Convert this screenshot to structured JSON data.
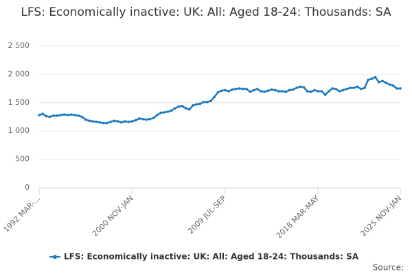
{
  "chart_data": {
    "type": "line",
    "title": "LFS: Economically inactive: UK: All: Aged 18-24: Thousands: SA",
    "source": "Source:",
    "categories": [
      "1992 MAR-...",
      null,
      null,
      null,
      null,
      null,
      null,
      null,
      null,
      null,
      null,
      null,
      null,
      null,
      null,
      null,
      null,
      null,
      null,
      null,
      null,
      null,
      null,
      null,
      null,
      null,
      "2000 NOV-JAN",
      null,
      null,
      null,
      null,
      null,
      null,
      null,
      null,
      null,
      null,
      null,
      null,
      null,
      null,
      null,
      null,
      null,
      null,
      null,
      null,
      null,
      null,
      null,
      null,
      null,
      "2009 JUL-SEP",
      null,
      null,
      null,
      null,
      null,
      null,
      null,
      null,
      null,
      null,
      null,
      null,
      null,
      null,
      null,
      null,
      null,
      null,
      null,
      null,
      null,
      null,
      null,
      null,
      null,
      "2018 MAR-MAY",
      null,
      null,
      null,
      null,
      null,
      null,
      null,
      null,
      null,
      null,
      null,
      null,
      null,
      null,
      null,
      null,
      null,
      null,
      null,
      null,
      null,
      null,
      "2025 NOV-JAN"
    ],
    "series": [
      {
        "name": "LFS: Economically inactive: UK: All: Aged 18-24: Thousands: SA",
        "color": "#1a7abf",
        "values": [
          1280,
          1300,
          1260,
          1250,
          1270,
          1270,
          1280,
          1290,
          1280,
          1290,
          1280,
          1270,
          1250,
          1200,
          1180,
          1170,
          1160,
          1150,
          1140,
          1140,
          1160,
          1180,
          1170,
          1150,
          1170,
          1160,
          1170,
          1190,
          1220,
          1210,
          1200,
          1210,
          1230,
          1280,
          1320,
          1330,
          1340,
          1360,
          1400,
          1430,
          1440,
          1400,
          1380,
          1450,
          1470,
          1480,
          1510,
          1510,
          1530,
          1600,
          1680,
          1710,
          1720,
          1700,
          1730,
          1740,
          1750,
          1740,
          1740,
          1690,
          1720,
          1740,
          1700,
          1690,
          1710,
          1730,
          1720,
          1700,
          1700,
          1690,
          1720,
          1730,
          1760,
          1780,
          1770,
          1700,
          1690,
          1720,
          1700,
          1700,
          1640,
          1700,
          1750,
          1740,
          1700,
          1720,
          1740,
          1760,
          1760,
          1780,
          1740,
          1760,
          1900,
          1920,
          1950,
          1860,
          1880,
          1850,
          1820,
          1800,
          1750,
          1750
        ]
      }
    ],
    "ylim": [
      0,
      2500
    ],
    "yticks": [
      0,
      500,
      {
        "value": 1000,
        "label": "1 000"
      },
      {
        "value": 1500,
        "label": "1 500"
      },
      {
        "value": 2000,
        "label": "2 000"
      },
      {
        "value": 2500,
        "label": "2 500"
      }
    ],
    "grid": true,
    "legend": "bottom"
  }
}
